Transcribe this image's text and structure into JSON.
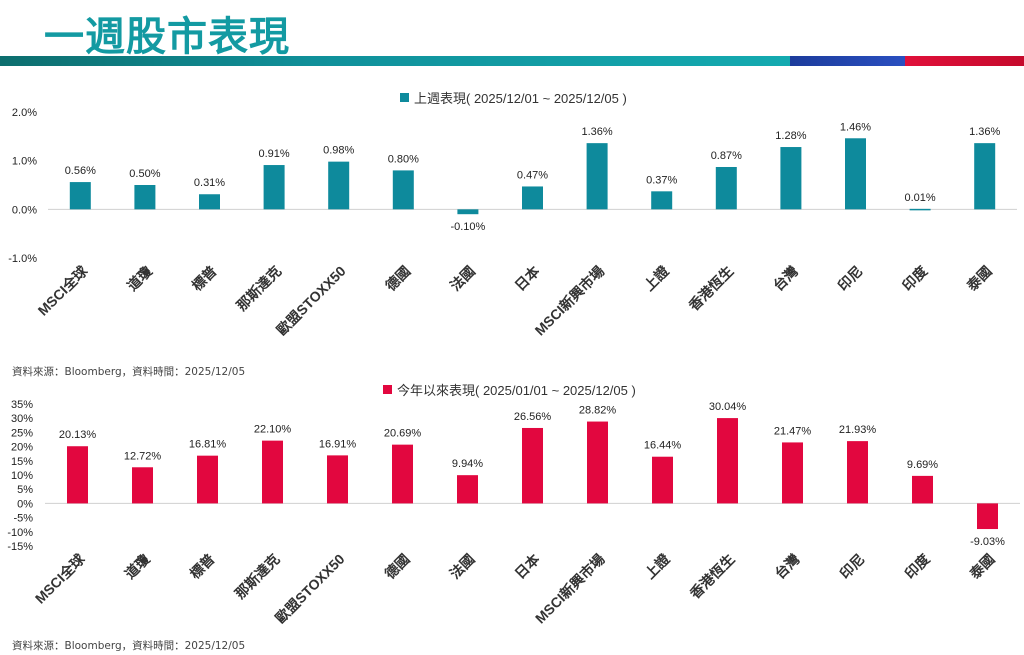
{
  "page": {
    "title": "一週股市表現",
    "source1": "資料來源：Bloomberg，資料時間：2025/12/05",
    "source2": "資料來源：Bloomberg，資料時間：2025/12/05"
  },
  "colors": {
    "title": "#139aa2",
    "weekly": "#0e8a9c",
    "ytd": "#e2073f"
  },
  "chart_data": [
    {
      "type": "bar",
      "title": "上週表現( 2025/12/01 ~ 2025/12/05 )",
      "categories": [
        "MSCI全球",
        "道瓊",
        "標普",
        "那斯達克",
        "歐盟STOXX50",
        "德國",
        "法國",
        "日本",
        "MSCI新興市場",
        "上證",
        "香港恆生",
        "台灣",
        "印尼",
        "印度",
        "泰國"
      ],
      "values": [
        0.56,
        0.5,
        0.31,
        0.91,
        0.98,
        0.8,
        -0.1,
        0.47,
        1.36,
        0.37,
        0.87,
        1.28,
        1.46,
        0.01,
        1.36
      ],
      "data_labels": [
        "0.56%",
        "0.50%",
        "0.31%",
        "0.91%",
        "0.98%",
        "0.80%",
        "-0.10%",
        "0.47%",
        "1.36%",
        "0.37%",
        "0.87%",
        "1.28%",
        "1.46%",
        "0.01%",
        "1.36%"
      ],
      "yticks": [
        2.0,
        1.0,
        0.0,
        -1.0
      ],
      "ytick_labels": [
        "2.0%",
        "1.0%",
        "0.0%",
        "-1.0%"
      ],
      "ylim": [
        -1.0,
        2.0
      ]
    },
    {
      "type": "bar",
      "title": "今年以來表現( 2025/01/01 ~ 2025/12/05 )",
      "categories": [
        "MSCI全球",
        "道瓊",
        "標普",
        "那斯達克",
        "歐盟STOXX50",
        "德國",
        "法國",
        "日本",
        "MSCI新興市場",
        "上證",
        "香港恆生",
        "台灣",
        "印尼",
        "印度",
        "泰國"
      ],
      "values": [
        20.13,
        12.72,
        16.81,
        22.1,
        16.91,
        20.69,
        9.94,
        26.56,
        28.82,
        16.44,
        30.04,
        21.47,
        21.93,
        9.69,
        -9.03
      ],
      "data_labels": [
        "20.13%",
        "12.72%",
        "16.81%",
        "22.10%",
        "16.91%",
        "20.69%",
        "9.94%",
        "26.56%",
        "28.82%",
        "16.44%",
        "30.04%",
        "21.47%",
        "21.93%",
        "9.69%",
        "-9.03%"
      ],
      "yticks": [
        35,
        30,
        25,
        20,
        15,
        10,
        5,
        0,
        -5,
        -10,
        -15
      ],
      "ytick_labels": [
        "35%",
        "30%",
        "25%",
        "20%",
        "15%",
        "10%",
        "5%",
        "0%",
        "-5%",
        "-10%",
        "-15%"
      ],
      "ylim": [
        -15,
        35
      ]
    }
  ]
}
